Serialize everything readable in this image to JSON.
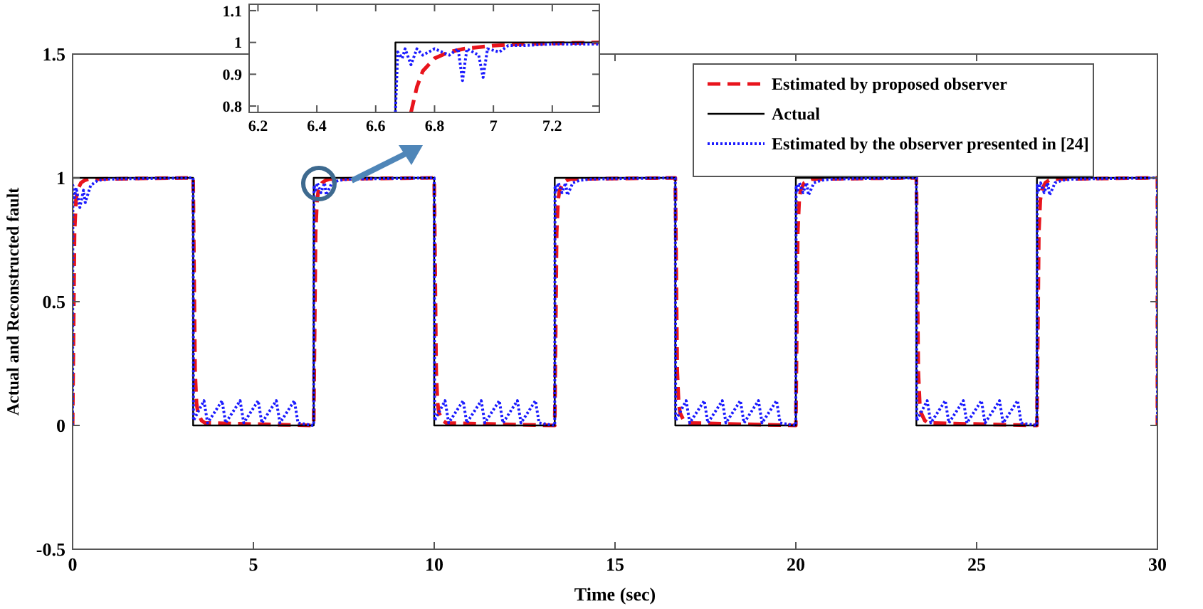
{
  "chart_data": [
    {
      "type": "line",
      "xlabel": "Time (sec)",
      "ylabel": "Actual and Reconstructed fault",
      "xlim": [
        0,
        30
      ],
      "ylim": [
        -0.5,
        1.5
      ],
      "xticks": [
        0,
        5,
        10,
        15,
        20,
        25,
        30
      ],
      "yticks": [
        -0.5,
        0,
        0.5,
        1,
        1.5
      ],
      "grid": false,
      "legend": "top right",
      "marker": "none",
      "series": [
        {
          "name": "Estimated by proposed observer",
          "color": "#e8141c",
          "line_style": "dashed",
          "x": [
            0,
            0.053,
            0.093,
            0.133,
            0.233,
            0.333,
            0.433,
            3.333,
            3.386,
            3.426,
            3.466,
            3.566,
            3.666,
            6.667,
            6.72,
            6.76,
            6.8,
            6.9,
            7.0,
            7.1,
            10,
            10.053,
            10.093,
            10.133,
            10.233,
            10.333,
            13.333,
            13.386,
            13.426,
            13.466,
            13.566,
            13.666,
            13.766,
            16.667,
            16.72,
            16.76,
            16.8,
            16.9,
            17.0,
            20,
            20.053,
            20.093,
            20.133,
            20.233,
            20.333,
            20.433,
            23.333,
            23.386,
            23.426,
            23.466,
            23.566,
            23.666,
            26.667,
            26.72,
            26.76,
            26.8,
            26.9,
            27.0,
            27.1,
            30,
            30
          ],
          "values": [
            0,
            0.78,
            0.91,
            0.95,
            0.98,
            0.99,
            0.995,
            1,
            0.22,
            0.09,
            0.05,
            0.02,
            0.01,
            0,
            0.78,
            0.91,
            0.95,
            0.98,
            0.99,
            0.995,
            1,
            0.22,
            0.09,
            0.05,
            0.02,
            0.01,
            0,
            0.78,
            0.91,
            0.95,
            0.98,
            0.99,
            0.995,
            1,
            0.22,
            0.09,
            0.05,
            0.02,
            0.01,
            0,
            0.78,
            0.91,
            0.95,
            0.98,
            0.99,
            0.995,
            1,
            0.22,
            0.09,
            0.05,
            0.02,
            0.01,
            0,
            0.78,
            0.91,
            0.95,
            0.98,
            0.99,
            0.995,
            1,
            0
          ]
        },
        {
          "name": "Actual",
          "color": "#000000",
          "line_style": "solid",
          "x": [
            0,
            0,
            3.333,
            3.333,
            6.667,
            6.667,
            10,
            10,
            13.333,
            13.333,
            16.667,
            16.667,
            20,
            20,
            23.333,
            23.333,
            26.667,
            26.667,
            30,
            30
          ],
          "values": [
            0,
            1,
            1,
            0,
            0,
            1,
            1,
            0,
            0,
            1,
            1,
            0,
            0,
            1,
            1,
            0,
            0,
            1,
            1,
            0
          ]
        },
        {
          "name": "Estimated by the observer presented in [24]",
          "color": "#1a1aff",
          "line_style": "dotted",
          "x": [
            0,
            0.008,
            0.05,
            0.1,
            0.2,
            0.3,
            0.35,
            0.5,
            0.7,
            1.0,
            3.333,
            3.343,
            3.633,
            3.733,
            4.133,
            4.233,
            4.633,
            4.733,
            5.133,
            5.233,
            5.633,
            5.733,
            6.133,
            6.233,
            6.667,
            6.675,
            6.717,
            6.767,
            6.867,
            6.967,
            7.017,
            7.167,
            7.367,
            7.667,
            10,
            10.01,
            10.3,
            10.4,
            10.8,
            10.9,
            11.3,
            11.4,
            11.8,
            11.9,
            12.3,
            12.4,
            12.8,
            12.9,
            13.333,
            13.341,
            13.383,
            13.433,
            13.533,
            13.633,
            13.683,
            13.833,
            14.033,
            14.333,
            16.667,
            16.677,
            16.967,
            17.067,
            17.467,
            17.567,
            17.967,
            18.067,
            18.467,
            18.567,
            18.967,
            19.067,
            19.467,
            19.567,
            20,
            20.008,
            20.05,
            20.1,
            20.2,
            20.3,
            20.35,
            20.5,
            20.7,
            21.0,
            23.333,
            23.343,
            23.633,
            23.733,
            24.133,
            24.233,
            24.633,
            24.733,
            25.133,
            25.233,
            25.633,
            25.733,
            26.133,
            26.233,
            26.667,
            26.675,
            26.717,
            26.767,
            26.867,
            26.967,
            27.017,
            27.167,
            27.367,
            27.667,
            30,
            30
          ],
          "values": [
            0,
            0.97,
            0.92,
            0.96,
            0.88,
            0.95,
            0.9,
            0.97,
            0.99,
            0.995,
            1,
            0.02,
            0.1,
            0.01,
            0.1,
            0.01,
            0.1,
            0.01,
            0.1,
            0.01,
            0.1,
            0.01,
            0.1,
            0.01,
            0,
            0.97,
            0.95,
            0.98,
            0.94,
            0.98,
            0.93,
            0.98,
            0.99,
            0.995,
            1,
            0.02,
            0.1,
            0.01,
            0.1,
            0.01,
            0.1,
            0.01,
            0.1,
            0.01,
            0.1,
            0.01,
            0.1,
            0.01,
            0,
            0.97,
            0.95,
            0.98,
            0.94,
            0.98,
            0.93,
            0.98,
            0.99,
            0.995,
            1,
            0.02,
            0.1,
            0.01,
            0.1,
            0.01,
            0.1,
            0.01,
            0.1,
            0.01,
            0.1,
            0.01,
            0.1,
            0.01,
            0,
            0.97,
            0.95,
            0.98,
            0.94,
            0.98,
            0.93,
            0.98,
            0.99,
            0.995,
            1,
            0.02,
            0.1,
            0.01,
            0.1,
            0.01,
            0.1,
            0.01,
            0.1,
            0.01,
            0.1,
            0.01,
            0.1,
            0.01,
            0,
            0.97,
            0.95,
            0.98,
            0.94,
            0.98,
            0.93,
            0.98,
            0.99,
            0.995,
            1,
            0
          ]
        }
      ]
    },
    {
      "type": "line",
      "xlim": [
        6.17,
        7.36
      ],
      "ylim": [
        0.78,
        1.12
      ],
      "xticks": [
        6.2,
        6.4,
        6.6,
        6.8,
        7,
        7.2
      ],
      "yticks": [
        0.8,
        0.9,
        1,
        1.1
      ],
      "grid": false,
      "marker": "none",
      "series": [
        {
          "color": "#e8141c",
          "line_style": "dashed",
          "x": [
            6.72,
            6.74,
            6.76,
            6.8,
            6.85,
            6.9,
            7.0,
            7.1,
            7.36
          ],
          "values": [
            0.78,
            0.86,
            0.91,
            0.95,
            0.97,
            0.98,
            0.99,
            0.995,
            1
          ]
        },
        {
          "color": "#000000",
          "line_style": "solid",
          "x": [
            6.667,
            6.667,
            7.36
          ],
          "values": [
            0.78,
            1,
            1
          ]
        },
        {
          "color": "#1a1aff",
          "line_style": "dotted",
          "x": [
            6.667,
            6.675,
            6.69,
            6.7,
            6.72,
            6.74,
            6.76,
            6.8,
            6.85,
            6.88,
            6.895,
            6.91,
            6.95,
            6.965,
            6.98,
            7.02,
            7.05,
            7.1,
            7.2,
            7.36
          ],
          "values": [
            0.78,
            0.97,
            0.95,
            0.98,
            0.93,
            0.98,
            0.96,
            0.98,
            0.96,
            0.98,
            0.88,
            0.98,
            0.96,
            0.89,
            0.98,
            0.97,
            0.99,
            0.99,
            0.995,
            0.995
          ]
        }
      ]
    }
  ]
}
